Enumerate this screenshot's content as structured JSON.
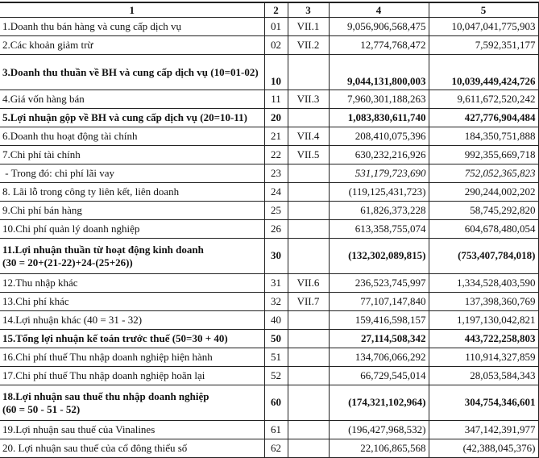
{
  "header": [
    "1",
    "2",
    "3",
    "4",
    "5"
  ],
  "rows": [
    {
      "label": "1.Doanh thu bán hàng và cung cấp dịch vụ",
      "code": "01",
      "note": "VII.1",
      "col4": "9,056,906,568,475",
      "col5": "10,047,041,775,903",
      "style": ""
    },
    {
      "label": "2.Các khoản giảm trừ",
      "code": "02",
      "note": "VII.2",
      "col4": "12,774,768,472",
      "col5": "7,592,351,177",
      "style": ""
    },
    {
      "label": "3.Doanh thu thuần về BH và cung cấp dịch vụ (10=01-02)",
      "code": "10",
      "note": "",
      "col4": "9,044,131,800,003",
      "col5": "10,039,449,424,726",
      "style": "bold dbl"
    },
    {
      "label": "4.Giá vốn hàng bán",
      "code": "11",
      "note": "VII.3",
      "col4": "7,960,301,188,263",
      "col5": "9,611,672,520,242",
      "style": ""
    },
    {
      "label": "5.Lợi nhuận gộp về BH và cung cấp dịch vụ (20=10-11)",
      "code": "20",
      "note": "",
      "col4": "1,083,830,611,740",
      "col5": "427,776,904,484",
      "style": "bold"
    },
    {
      "label": "6.Doanh thu hoạt động tài chính",
      "code": "21",
      "note": "VII.4",
      "col4": "208,410,075,396",
      "col5": "184,350,751,888",
      "style": ""
    },
    {
      "label": "7.Chi phí tài chính",
      "code": "22",
      "note": "VII.5",
      "col4": "630,232,216,926",
      "col5": "992,355,669,718",
      "style": ""
    },
    {
      "label": " - Trong đó: chi phí lãi vay",
      "code": "23",
      "note": "",
      "col4": "531,179,723,690",
      "col5": "752,052,365,823",
      "style": "ital"
    },
    {
      "label": "8. Lãi lỗ trong công ty liên kết, liên doanh",
      "code": "24",
      "note": "",
      "col4": "(119,125,431,723)",
      "col5": "290,244,002,202",
      "style": ""
    },
    {
      "label": "9.Chi phí bán hàng",
      "code": "25",
      "note": "",
      "col4": "61,826,373,228",
      "col5": "58,745,292,820",
      "style": ""
    },
    {
      "label": "10.Chi phí quản lý doanh nghiệp",
      "code": "26",
      "note": "",
      "col4": "613,358,755,074",
      "col5": "604,678,480,054",
      "style": ""
    },
    {
      "label": "11.Lợi nhuận thuần từ hoạt động kinh doanh",
      "label2": "(30 = 20+(21-22)+24-(25+26))",
      "code": "30",
      "note": "",
      "col4": "(132,302,089,815)",
      "col5": "(753,407,784,018)",
      "style": "bold dbl mid"
    },
    {
      "label": "12.Thu nhập khác",
      "code": "31",
      "note": "VII.6",
      "col4": "236,523,745,997",
      "col5": "1,334,528,403,590",
      "style": ""
    },
    {
      "label": "13.Chi phí khác",
      "code": "32",
      "note": "VII.7",
      "col4": "77,107,147,840",
      "col5": "137,398,360,769",
      "style": ""
    },
    {
      "label": "14.Lợi nhuận khác (40 = 31 - 32)",
      "code": "40",
      "note": "",
      "col4": "159,416,598,157",
      "col5": "1,197,130,042,821",
      "style": ""
    },
    {
      "label": "15.Tổng lợi nhuận kế toán trước thuế (50=30 + 40)",
      "code": "50",
      "note": "",
      "col4": "27,114,508,342",
      "col5": "443,722,258,803",
      "style": "bold"
    },
    {
      "label": "16.Chi phí thuế Thu nhập doanh nghiệp hiện hành",
      "code": "51",
      "note": "",
      "col4": "134,706,066,292",
      "col5": "110,914,327,859",
      "style": ""
    },
    {
      "label": "17.Chi phí thuế Thu nhập doanh nghiệp hoãn lại",
      "code": "52",
      "note": "",
      "col4": "66,729,545,014",
      "col5": "28,053,584,343",
      "style": ""
    },
    {
      "label": "18.Lợi nhuận sau thuế thu nhập doanh nghiệp",
      "label2": "(60 = 50 - 51 - 52)",
      "code": "60",
      "note": "",
      "col4": "(174,321,102,964)",
      "col5": "304,754,346,601",
      "style": "bold dbl mid"
    },
    {
      "label": "19.Lợi nhuận sau thuế của Vinalines",
      "code": "61",
      "note": "",
      "col4": "(196,427,968,532)",
      "col5": "347,142,391,977",
      "style": ""
    },
    {
      "label": "20. Lợi nhuận sau thuế của cổ đông thiểu số",
      "code": "62",
      "note": "",
      "col4": "22,106,865,568",
      "col5": "(42,388,045,376)",
      "style": ""
    }
  ]
}
